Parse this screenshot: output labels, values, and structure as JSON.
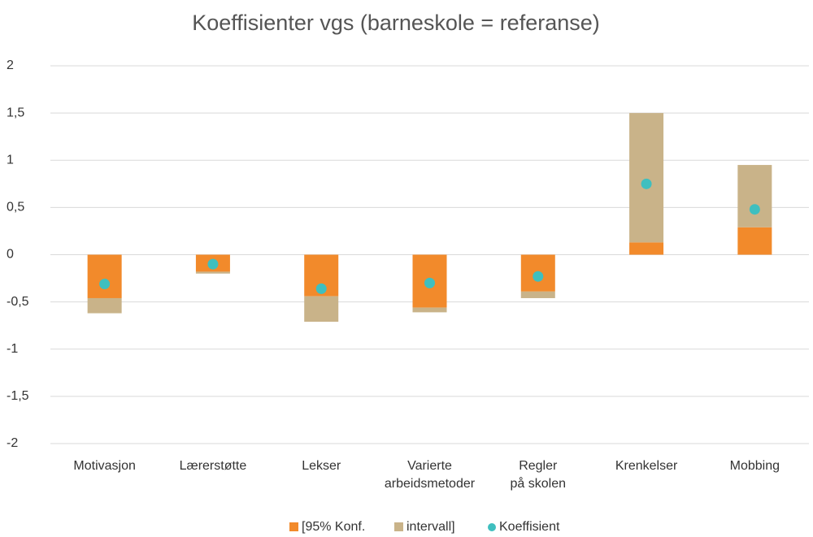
{
  "chart_data": {
    "type": "bar",
    "title": "Koeffisienter vgs (barneskole = referanse)",
    "categories": [
      "Motivasjon",
      "Lærerstøtte",
      "Lekser",
      "Varierte\narbeidsmetoder",
      "Regler\npå skolen",
      "Krenkelser",
      "Mobbing"
    ],
    "series": [
      {
        "name": "[95% Konf.",
        "color": "#f28a2b",
        "values": [
          -0.46,
          -0.18,
          -0.44,
          -0.56,
          -0.39,
          0.13,
          0.29
        ]
      },
      {
        "name": "intervall]",
        "color": "#c9b389",
        "values": [
          -0.16,
          -0.02,
          -0.27,
          -0.05,
          -0.07,
          1.37,
          0.66
        ]
      },
      {
        "name": "Koeffisient",
        "color": "#3fbfbf",
        "type": "scatter",
        "values": [
          -0.31,
          -0.1,
          -0.36,
          -0.3,
          -0.23,
          0.75,
          0.48
        ]
      }
    ],
    "stacked": true,
    "ylim": [
      -2,
      2
    ],
    "yticks": [
      -2,
      {
        "value": -1.5,
        "label": "-1,5"
      },
      -1,
      {
        "value": -0.5,
        "label": "-0,5"
      },
      0,
      {
        "value": 0.5,
        "label": "0,5"
      },
      1,
      {
        "value": 1.5,
        "label": "1,5"
      },
      2
    ],
    "grid": true,
    "legend": "bottom"
  }
}
